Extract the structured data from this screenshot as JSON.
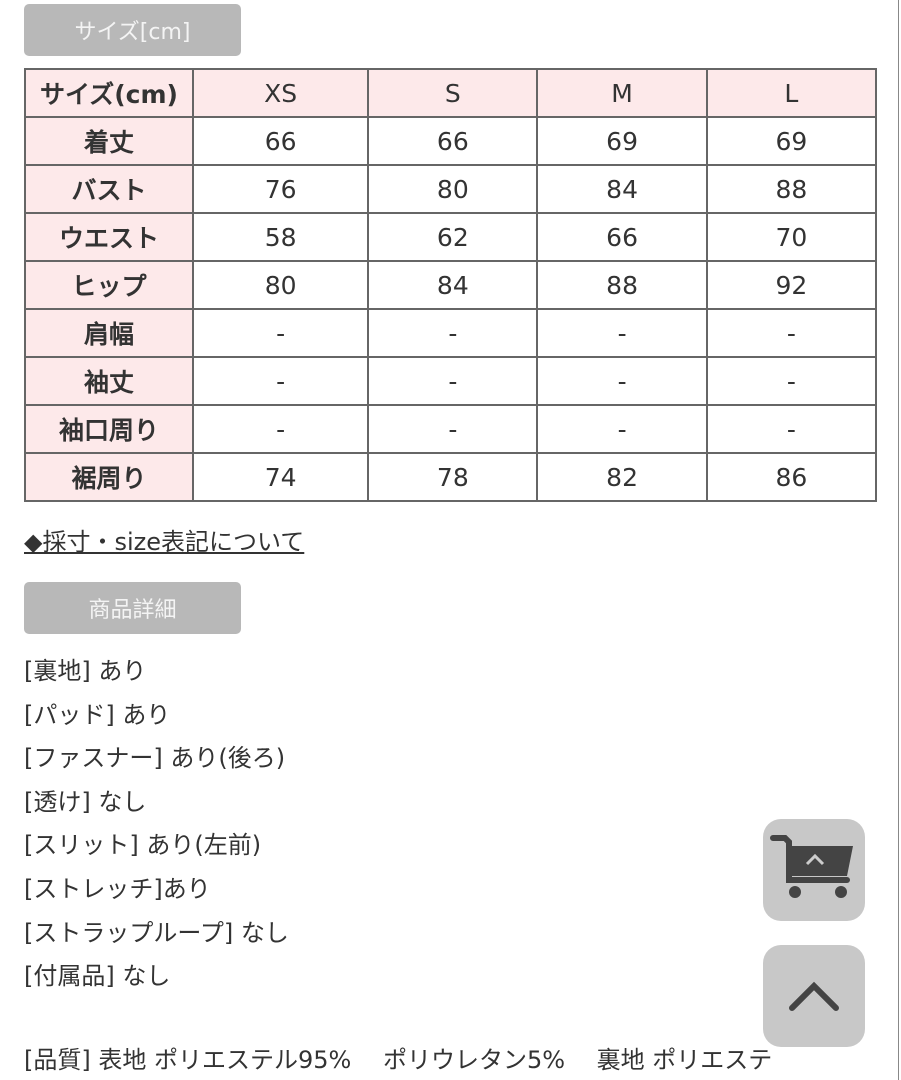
{
  "size_section": {
    "label": "サイズ[cm]"
  },
  "table": {
    "header": [
      "サイズ(cm)",
      "XS",
      "S",
      "M",
      "L"
    ],
    "rows": [
      [
        "着丈",
        "66",
        "66",
        "69",
        "69"
      ],
      [
        "バスト",
        "76",
        "80",
        "84",
        "88"
      ],
      [
        "ウエスト",
        "58",
        "62",
        "66",
        "70"
      ],
      [
        "ヒップ",
        "80",
        "84",
        "88",
        "92"
      ],
      [
        "肩幅",
        "-",
        "-",
        "-",
        "-"
      ],
      [
        "袖丈",
        "-",
        "-",
        "-",
        "-"
      ],
      [
        "袖口周り",
        "-",
        "-",
        "-",
        "-"
      ],
      [
        "裾周り",
        "74",
        "78",
        "82",
        "86"
      ]
    ]
  },
  "size_link": "◆採寸・size表記について",
  "details_section": {
    "label": "商品詳細"
  },
  "details": [
    "[裏地] あり",
    "[パッド] あり",
    "[ファスナー] あり(後ろ)",
    "[透け] なし",
    "[スリット] あり(左前)",
    "[ストレッチ]あり",
    "[ストラップループ] なし",
    "[付属品] なし"
  ],
  "quality": "[品質] 表地 ポリエステル95%　 ポリウレタン5%　 裏地 ポリエステ",
  "buttons": {
    "cart_icon": "cart-icon",
    "top_icon": "chevron-up-icon"
  }
}
